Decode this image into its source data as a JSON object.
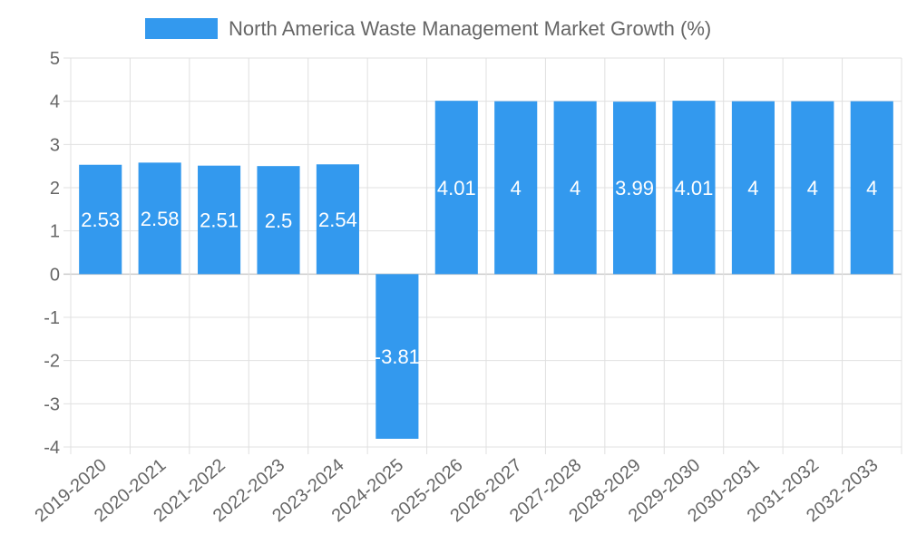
{
  "chart_data": {
    "type": "bar",
    "title": "",
    "xlabel": "",
    "ylabel": "",
    "legend": {
      "position": "top",
      "entries": [
        "North America Waste Management Market Growth (%)"
      ]
    },
    "series": [
      {
        "name": "North America Waste Management Market Growth (%)",
        "values": [
          2.53,
          2.58,
          2.51,
          2.5,
          2.54,
          -3.81,
          4.01,
          4,
          4,
          3.99,
          4.01,
          4,
          4,
          4
        ]
      }
    ],
    "categories": [
      "2019-2020",
      "2020-2021",
      "2021-2022",
      "2022-2023",
      "2023-2024",
      "2024-2025",
      "2025-2026",
      "2026-2027",
      "2027-2028",
      "2028-2029",
      "2029-2030",
      "2030-2031",
      "2031-2032",
      "2032-2033"
    ],
    "ylim": [
      -4,
      5
    ],
    "yticks": [
      -4,
      -3,
      -2,
      -1,
      0,
      1,
      2,
      3,
      4,
      5
    ],
    "grid": true,
    "data_labels": true
  },
  "colors": {
    "bar": "#3399ee",
    "grid": "#e0e0e0",
    "zero_line": "#cccccc",
    "text": "#666666",
    "label": "#ffffff"
  }
}
